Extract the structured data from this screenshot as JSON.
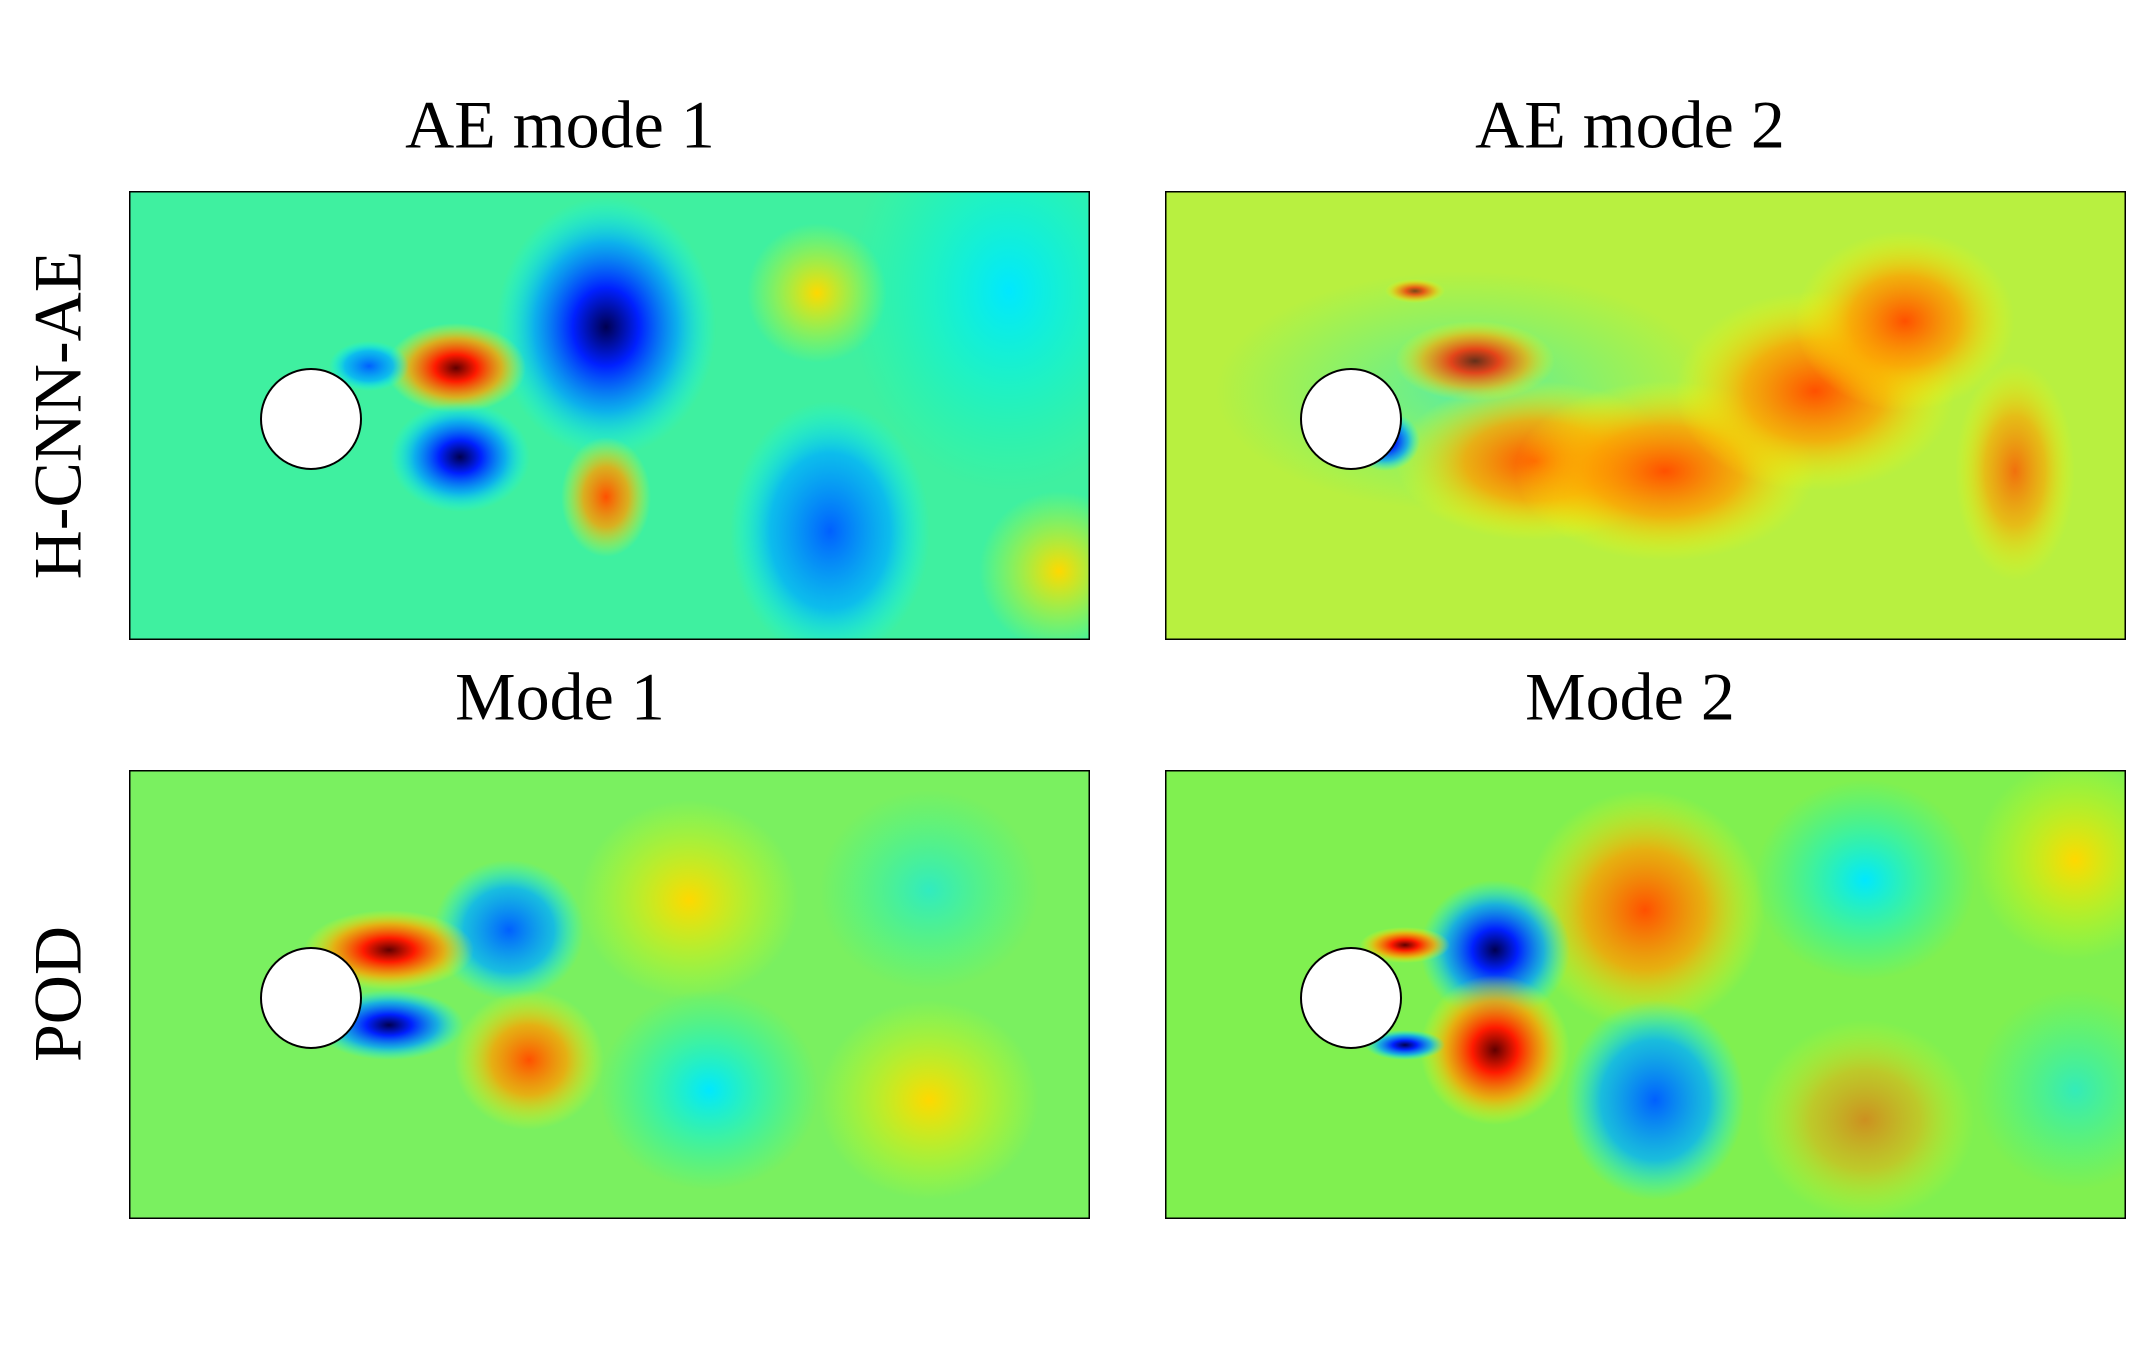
{
  "panels": [
    {
      "title": "AE mode 1"
    },
    {
      "title": "AE mode 2"
    },
    {
      "title": "Mode 1"
    },
    {
      "title": "Mode 2"
    }
  ],
  "row_labels": [
    "H-CNN-AE",
    "POD"
  ]
}
